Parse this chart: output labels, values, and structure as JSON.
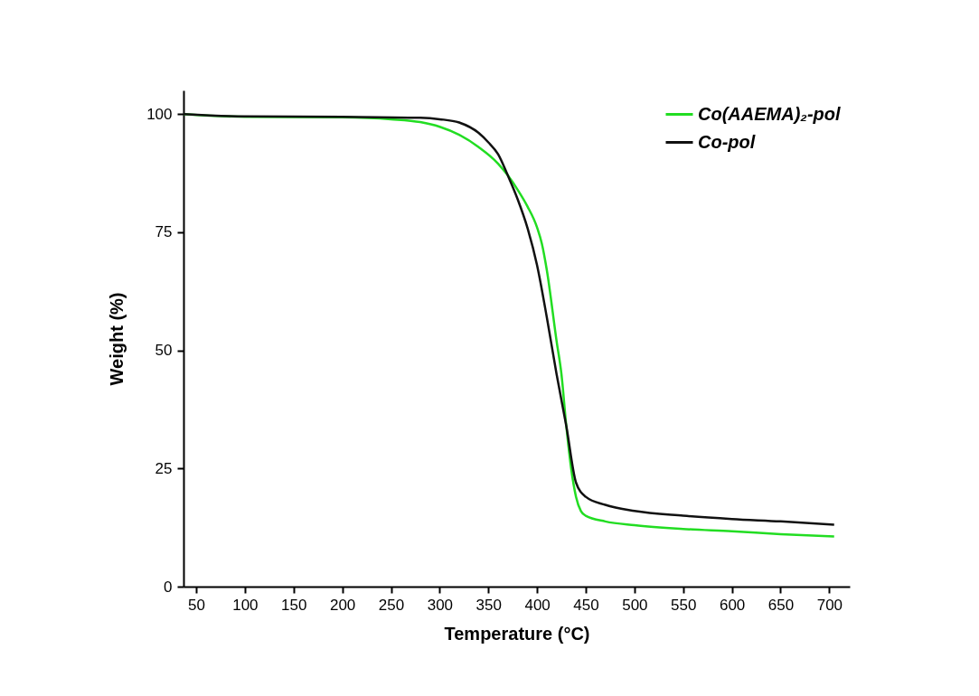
{
  "chart_data": {
    "type": "line",
    "xlabel": "Temperature (°C)",
    "ylabel": "Weight (%)",
    "xlim": [
      37,
      721
    ],
    "ylim": [
      0,
      105
    ],
    "xticks": [
      50,
      100,
      150,
      200,
      250,
      300,
      350,
      400,
      450,
      500,
      550,
      600,
      650,
      700
    ],
    "yticks": [
      0,
      25,
      50,
      75,
      100
    ],
    "grid": false,
    "legend": "top right",
    "line_style": "solid",
    "series": [
      {
        "name": "Co(AAEMA)₂-pol",
        "color": "#22dd22",
        "x": [
          37,
          100,
          200,
          250,
          280,
          300,
          320,
          340,
          360,
          370,
          380,
          390,
          400,
          405,
          410,
          420,
          425,
          430,
          435,
          440,
          445,
          450,
          470,
          500,
          550,
          600,
          650,
          705
        ],
        "values": [
          100,
          99.4,
          99.3,
          98.9,
          98.3,
          97.3,
          95.6,
          93,
          89.5,
          87,
          84,
          80.5,
          76,
          72.5,
          67,
          52,
          45,
          34,
          25,
          19,
          16,
          15,
          13.8,
          13,
          12.2,
          11.7,
          11.1,
          10.6
        ]
      },
      {
        "name": "Co-pol",
        "color": "#111111",
        "x": [
          37,
          100,
          200,
          280,
          300,
          320,
          340,
          350,
          360,
          370,
          380,
          390,
          400,
          410,
          420,
          430,
          440,
          450,
          470,
          500,
          550,
          600,
          650,
          705
        ],
        "values": [
          100,
          99.5,
          99.4,
          99.2,
          98.9,
          98.2,
          96,
          94,
          91.5,
          87,
          82,
          76,
          68,
          57,
          45,
          34,
          22,
          19,
          17.3,
          16,
          15,
          14.3,
          13.8,
          13.1
        ]
      }
    ]
  }
}
